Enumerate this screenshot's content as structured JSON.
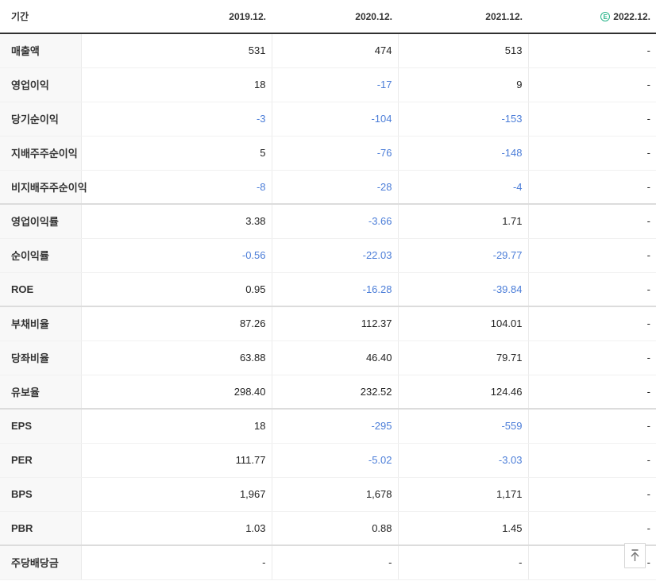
{
  "colors": {
    "negative_value": "#4b7dd8",
    "estimate_badge": "#2ab48a",
    "header_border": "#303030"
  },
  "table": {
    "header": {
      "period_label": "기간",
      "columns": [
        "2019.12.",
        "2020.12.",
        "2021.12.",
        "2022.12."
      ],
      "estimate_badge": "E",
      "estimate_column_index": 3
    },
    "rows": [
      {
        "label": "매출액",
        "values": [
          "531",
          "474",
          "513",
          "-"
        ],
        "group_end": false
      },
      {
        "label": "영업이익",
        "values": [
          "18",
          "-17",
          "9",
          "-"
        ],
        "group_end": false
      },
      {
        "label": "당기순이익",
        "values": [
          "-3",
          "-104",
          "-153",
          "-"
        ],
        "group_end": false
      },
      {
        "label": "지배주주순이익",
        "values": [
          "5",
          "-76",
          "-148",
          "-"
        ],
        "group_end": false
      },
      {
        "label": "비지배주주순이익",
        "values": [
          "-8",
          "-28",
          "-4",
          "-"
        ],
        "group_end": true
      },
      {
        "label": "영업이익률",
        "values": [
          "3.38",
          "-3.66",
          "1.71",
          "-"
        ],
        "group_end": false
      },
      {
        "label": "순이익률",
        "values": [
          "-0.56",
          "-22.03",
          "-29.77",
          "-"
        ],
        "group_end": false
      },
      {
        "label": "ROE",
        "values": [
          "0.95",
          "-16.28",
          "-39.84",
          "-"
        ],
        "group_end": true
      },
      {
        "label": "부채비율",
        "values": [
          "87.26",
          "112.37",
          "104.01",
          "-"
        ],
        "group_end": false
      },
      {
        "label": "당좌비율",
        "values": [
          "63.88",
          "46.40",
          "79.71",
          "-"
        ],
        "group_end": false
      },
      {
        "label": "유보율",
        "values": [
          "298.40",
          "232.52",
          "124.46",
          "-"
        ],
        "group_end": true
      },
      {
        "label": "EPS",
        "values": [
          "18",
          "-295",
          "-559",
          "-"
        ],
        "group_end": false
      },
      {
        "label": "PER",
        "values": [
          "111.77",
          "-5.02",
          "-3.03",
          "-"
        ],
        "group_end": false
      },
      {
        "label": "BPS",
        "values": [
          "1,967",
          "1,678",
          "1,171",
          "-"
        ],
        "group_end": false
      },
      {
        "label": "PBR",
        "values": [
          "1.03",
          "0.88",
          "1.45",
          "-"
        ],
        "group_end": true
      },
      {
        "label": "주당배당금",
        "values": [
          "-",
          "-",
          "-",
          "-"
        ],
        "group_end": false
      }
    ]
  },
  "scroll_top_button": {
    "icon": "arrow-up-to-line"
  }
}
